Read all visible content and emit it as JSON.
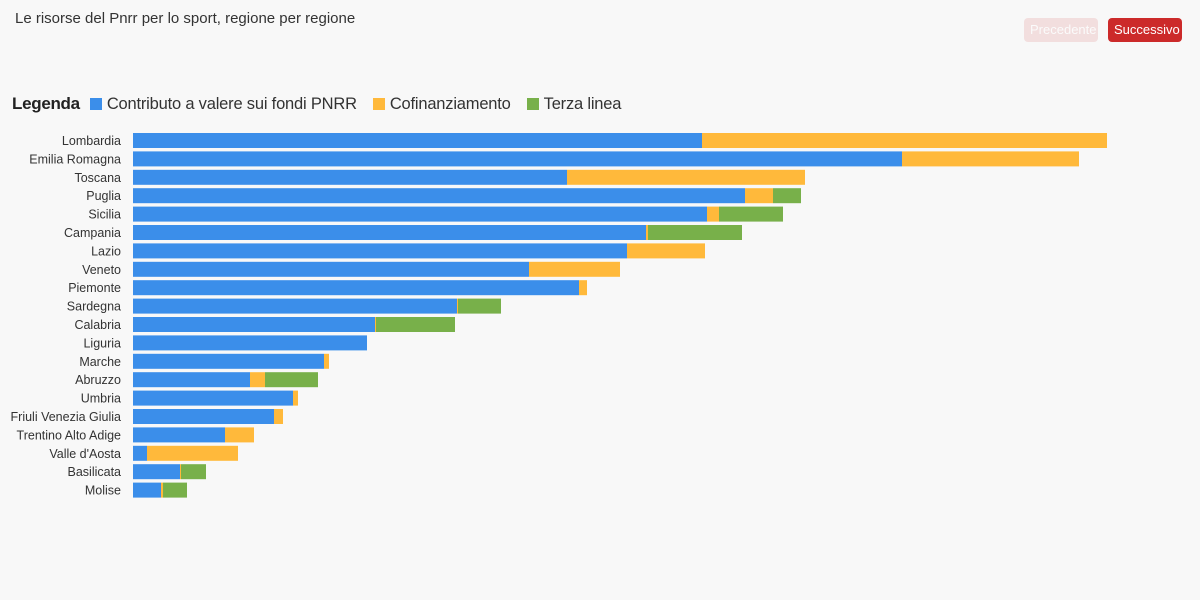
{
  "page": {
    "title": "Le risorse del Pnrr per lo sport, regione per regione",
    "prev_label": "Precedente",
    "next_label": "Successivo"
  },
  "legend": {
    "title": "Legenda"
  },
  "colors": {
    "pnrr": "#3b8eea",
    "cofin": "#ffb93b",
    "terza": "#78b04a",
    "prev_bg": "#f2dede",
    "next_bg": "#cc2a2a"
  },
  "chart_data": {
    "type": "bar",
    "orientation": "horizontal",
    "stacked": true,
    "categories": [
      "Lombardia",
      "Emilia Romagna",
      "Toscana",
      "Puglia",
      "Sicilia",
      "Campania",
      "Lazio",
      "Veneto",
      "Piemonte",
      "Sardegna",
      "Calabria",
      "Liguria",
      "Marche",
      "Abruzzo",
      "Umbria",
      "Friuli Venezia Giulia",
      "Trentino Alto Adige",
      "Valle d'Aosta",
      "Basilicata",
      "Molise"
    ],
    "series": [
      {
        "name": "Contributo a valere sui fondi PNRR",
        "color": "#3b8eea",
        "values": [
          569,
          769,
          434,
          612,
          574,
          513,
          494,
          396,
          446,
          324,
          242,
          234,
          191,
          117,
          160,
          141,
          92,
          14,
          47,
          28
        ]
      },
      {
        "name": "Cofinanziamento",
        "color": "#ffb93b",
        "values": [
          405,
          177,
          238,
          28,
          12,
          2,
          78,
          91,
          8,
          1,
          1,
          0,
          5,
          15,
          5,
          9,
          29,
          91,
          1,
          2
        ]
      },
      {
        "name": "Terza linea",
        "color": "#78b04a",
        "values": [
          0,
          0,
          0,
          28,
          64,
          94,
          0,
          0,
          0,
          43,
          79,
          0,
          0,
          53,
          0,
          0,
          0,
          0,
          25,
          24
        ]
      }
    ],
    "xlim": [
      0,
      1000
    ],
    "grid": false,
    "legend_position": "top-left"
  }
}
